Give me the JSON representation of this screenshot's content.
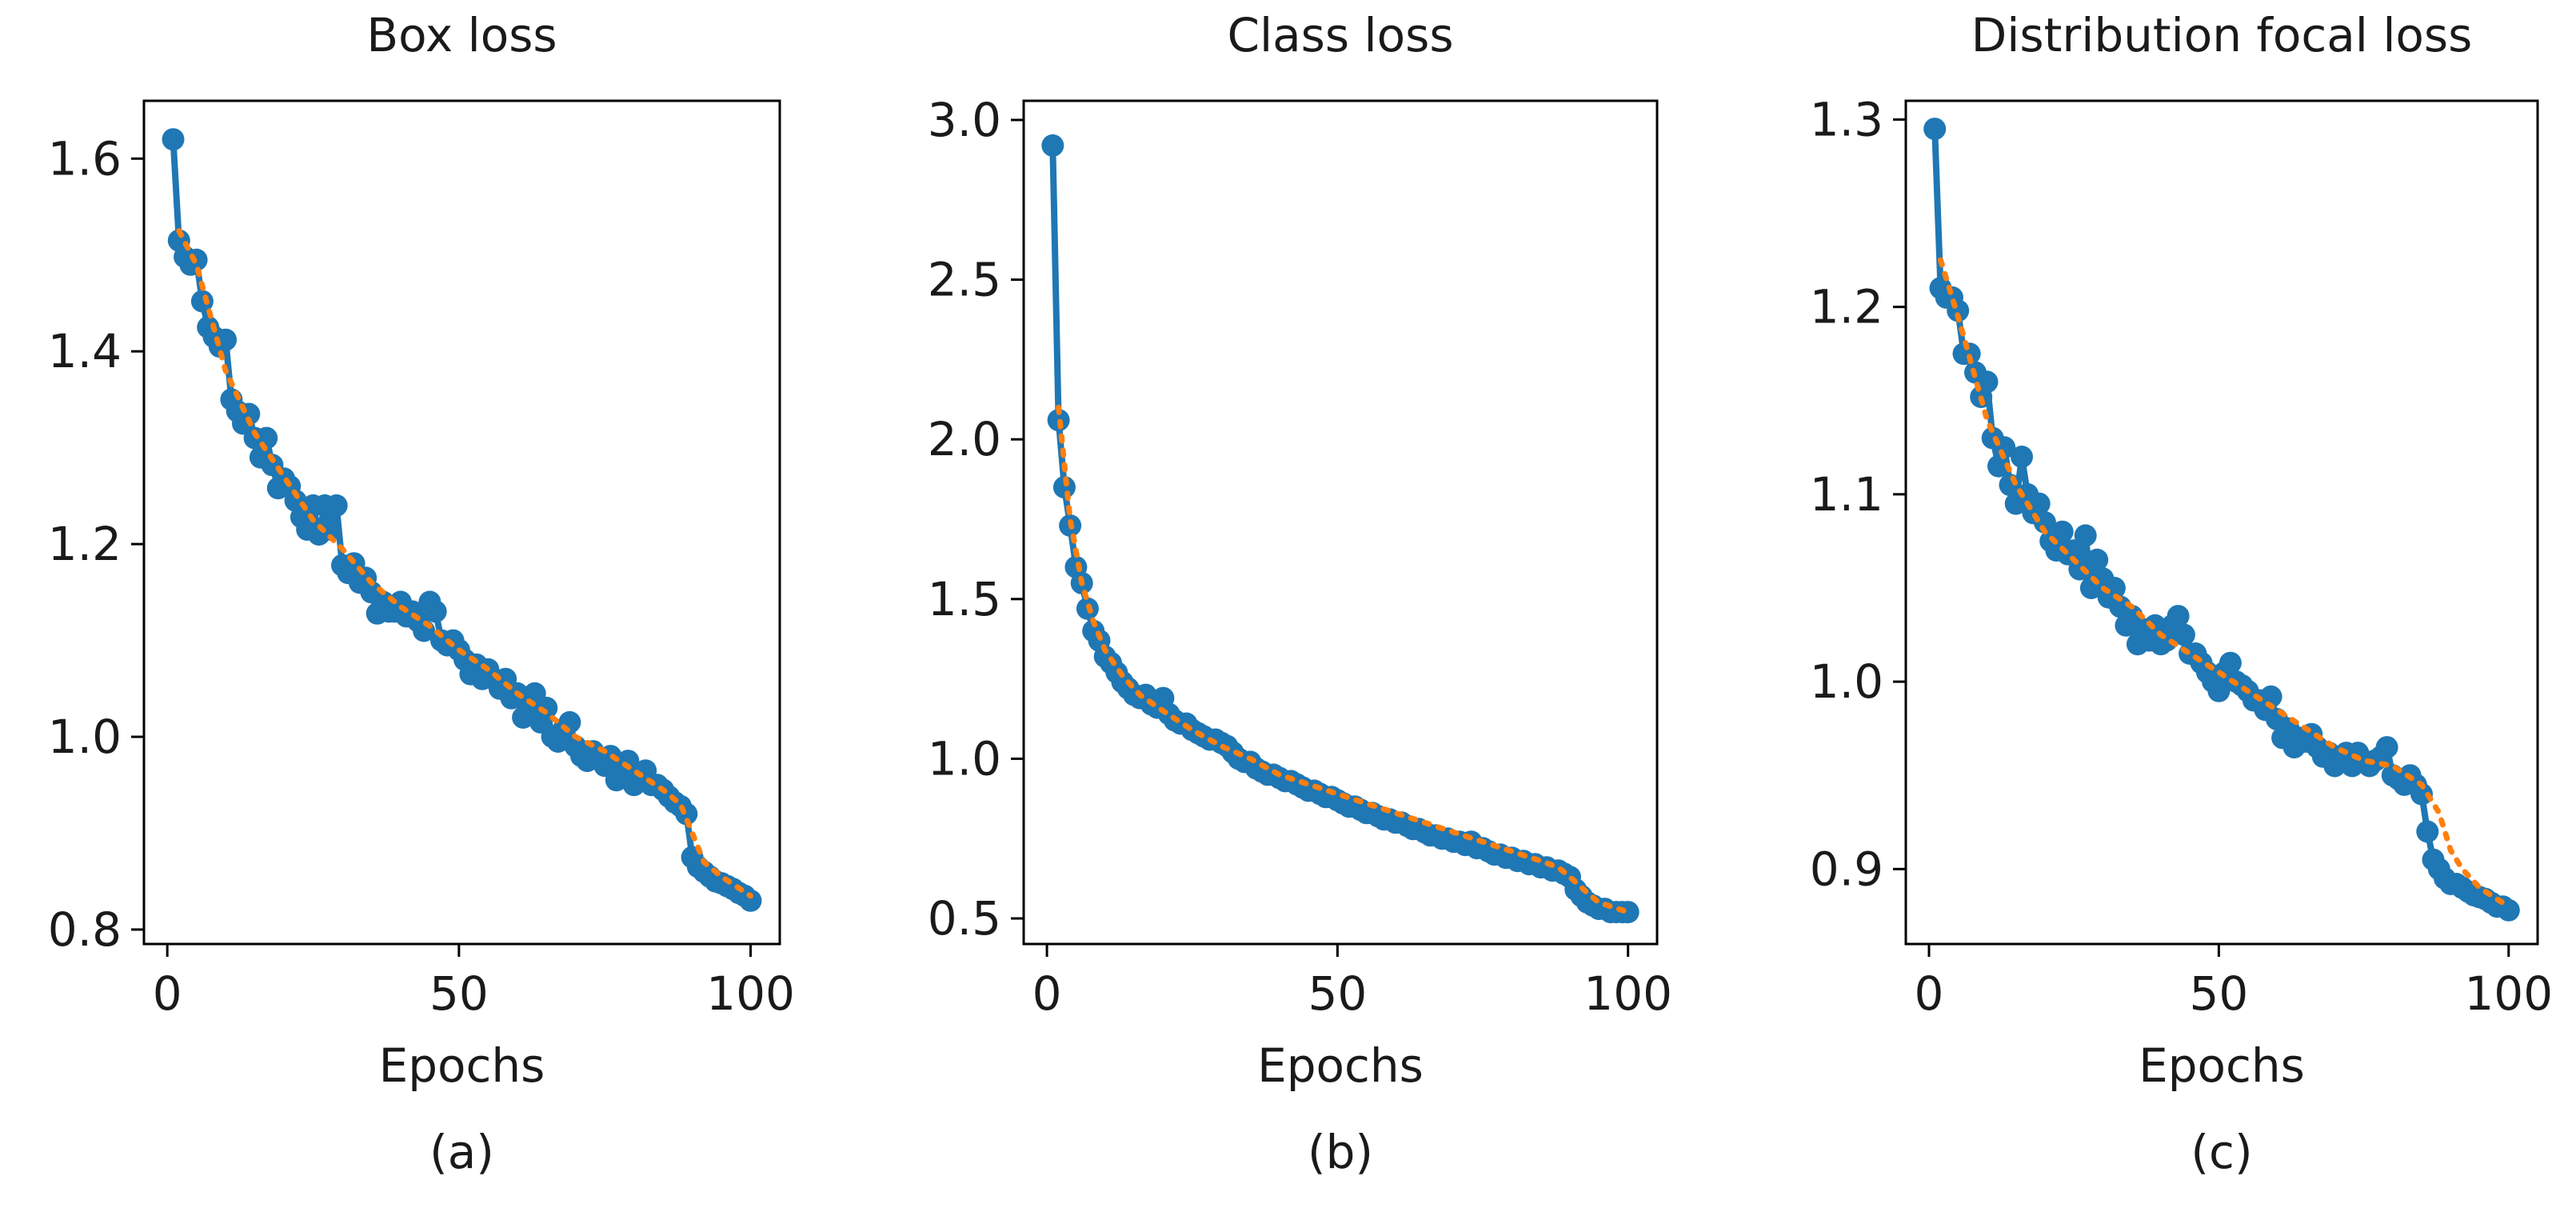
{
  "chart_data": [
    {
      "panel_label": "(a)",
      "type": "line",
      "title": "Box loss",
      "xlabel": "Epochs",
      "ylabel": "",
      "xlim": [
        -4,
        105
      ],
      "ylim": [
        0.785,
        1.66
      ],
      "xticks": [
        0,
        50,
        100
      ],
      "xtick_labels": [
        "0",
        "50",
        "100"
      ],
      "yticks": [
        0.8,
        1.0,
        1.2,
        1.4,
        1.6
      ],
      "ytick_labels": [
        "0.8",
        "1.0",
        "1.2",
        "1.4",
        "1.6"
      ],
      "grid": false,
      "legend": "none",
      "series": [
        {
          "style": "line-markers",
          "color": "#1f77b4",
          "x": [
            1,
            2,
            3,
            4,
            5,
            6,
            7,
            8,
            9,
            10,
            11,
            12,
            13,
            14,
            15,
            16,
            17,
            18,
            19,
            20,
            21,
            22,
            23,
            24,
            25,
            26,
            27,
            28,
            29,
            30,
            31,
            32,
            33,
            34,
            35,
            36,
            37,
            38,
            39,
            40,
            41,
            42,
            43,
            44,
            45,
            46,
            47,
            48,
            49,
            50,
            51,
            52,
            53,
            54,
            55,
            56,
            57,
            58,
            59,
            60,
            61,
            62,
            63,
            64,
            65,
            66,
            67,
            68,
            69,
            70,
            71,
            72,
            73,
            74,
            75,
            76,
            77,
            78,
            79,
            80,
            81,
            82,
            83,
            84,
            85,
            86,
            87,
            88,
            89,
            90,
            91,
            92,
            93,
            94,
            95,
            96,
            97,
            98,
            99,
            100
          ],
          "y": [
            1.62,
            1.515,
            1.498,
            1.49,
            1.495,
            1.452,
            1.425,
            1.415,
            1.405,
            1.412,
            1.35,
            1.338,
            1.325,
            1.335,
            1.31,
            1.29,
            1.31,
            1.282,
            1.258,
            1.268,
            1.26,
            1.245,
            1.228,
            1.215,
            1.24,
            1.21,
            1.24,
            1.215,
            1.24,
            1.178,
            1.17,
            1.18,
            1.16,
            1.165,
            1.15,
            1.128,
            1.14,
            1.13,
            1.13,
            1.14,
            1.125,
            1.13,
            1.12,
            1.11,
            1.14,
            1.13,
            1.1,
            1.095,
            1.1,
            1.09,
            1.08,
            1.065,
            1.075,
            1.06,
            1.07,
            1.06,
            1.05,
            1.06,
            1.04,
            1.045,
            1.02,
            1.03,
            1.045,
            1.015,
            1.03,
            1.0,
            0.995,
            1.008,
            1.015,
            0.99,
            0.98,
            0.975,
            0.985,
            0.978,
            0.97,
            0.98,
            0.955,
            0.965,
            0.975,
            0.95,
            0.96,
            0.965,
            0.95,
            0.95,
            0.945,
            0.938,
            0.932,
            0.928,
            0.92,
            0.875,
            0.865,
            0.86,
            0.855,
            0.85,
            0.848,
            0.845,
            0.842,
            0.838,
            0.835,
            0.83
          ]
        },
        {
          "style": "dotted-trend",
          "color": "#ff7f0e",
          "x": [
            2,
            5,
            10,
            15,
            20,
            25,
            30,
            35,
            40,
            45,
            50,
            55,
            60,
            65,
            70,
            75,
            80,
            85,
            88,
            90,
            92,
            95,
            100
          ],
          "y": [
            1.525,
            1.49,
            1.38,
            1.315,
            1.27,
            1.225,
            1.195,
            1.16,
            1.135,
            1.115,
            1.09,
            1.07,
            1.045,
            1.025,
            1.0,
            0.985,
            0.965,
            0.945,
            0.93,
            0.9,
            0.87,
            0.855,
            0.835
          ]
        }
      ]
    },
    {
      "panel_label": "(b)",
      "type": "line",
      "title": "Class loss",
      "xlabel": "Epochs",
      "ylabel": "",
      "xlim": [
        -4,
        105
      ],
      "ylim": [
        0.42,
        3.06
      ],
      "xticks": [
        0,
        50,
        100
      ],
      "xtick_labels": [
        "0",
        "50",
        "100"
      ],
      "yticks": [
        0.5,
        1.0,
        1.5,
        2.0,
        2.5,
        3.0
      ],
      "ytick_labels": [
        "0.5",
        "1.0",
        "1.5",
        "2.0",
        "2.5",
        "3.0"
      ],
      "grid": false,
      "legend": "none",
      "series": [
        {
          "style": "line-markers",
          "color": "#1f77b4",
          "x": [
            1,
            2,
            3,
            4,
            5,
            6,
            7,
            8,
            9,
            10,
            11,
            12,
            13,
            14,
            15,
            16,
            17,
            18,
            19,
            20,
            21,
            22,
            23,
            24,
            25,
            26,
            27,
            28,
            29,
            30,
            31,
            32,
            33,
            34,
            35,
            36,
            37,
            38,
            39,
            40,
            41,
            42,
            43,
            44,
            45,
            46,
            47,
            48,
            49,
            50,
            51,
            52,
            53,
            54,
            55,
            56,
            57,
            58,
            59,
            60,
            61,
            62,
            63,
            64,
            65,
            66,
            67,
            68,
            69,
            70,
            71,
            72,
            73,
            74,
            75,
            76,
            77,
            78,
            79,
            80,
            81,
            82,
            83,
            84,
            85,
            86,
            87,
            88,
            89,
            90,
            91,
            92,
            93,
            94,
            95,
            96,
            97,
            98,
            99,
            100
          ],
          "y": [
            2.92,
            2.06,
            1.85,
            1.73,
            1.6,
            1.55,
            1.47,
            1.4,
            1.37,
            1.32,
            1.3,
            1.27,
            1.24,
            1.22,
            1.2,
            1.19,
            1.2,
            1.17,
            1.16,
            1.19,
            1.14,
            1.12,
            1.11,
            1.11,
            1.09,
            1.08,
            1.07,
            1.06,
            1.06,
            1.05,
            1.04,
            1.02,
            1.0,
            0.99,
            0.99,
            0.97,
            0.96,
            0.95,
            0.95,
            0.94,
            0.93,
            0.93,
            0.92,
            0.91,
            0.9,
            0.9,
            0.89,
            0.88,
            0.88,
            0.87,
            0.86,
            0.85,
            0.85,
            0.84,
            0.83,
            0.83,
            0.82,
            0.81,
            0.81,
            0.8,
            0.8,
            0.79,
            0.78,
            0.78,
            0.77,
            0.76,
            0.76,
            0.75,
            0.75,
            0.74,
            0.74,
            0.73,
            0.74,
            0.72,
            0.72,
            0.71,
            0.7,
            0.7,
            0.69,
            0.69,
            0.68,
            0.68,
            0.67,
            0.67,
            0.66,
            0.66,
            0.65,
            0.65,
            0.64,
            0.63,
            0.59,
            0.57,
            0.55,
            0.54,
            0.53,
            0.53,
            0.52,
            0.52,
            0.52,
            0.52
          ]
        },
        {
          "style": "dotted-trend",
          "color": "#ff7f0e",
          "x": [
            2,
            3,
            4,
            6,
            8,
            10,
            13,
            16,
            20,
            25,
            30,
            35,
            40,
            45,
            50,
            55,
            60,
            65,
            70,
            75,
            80,
            85,
            88,
            90,
            93,
            95,
            100
          ],
          "y": [
            2.1,
            1.92,
            1.75,
            1.55,
            1.43,
            1.34,
            1.26,
            1.2,
            1.15,
            1.09,
            1.04,
            1.0,
            0.95,
            0.92,
            0.89,
            0.86,
            0.83,
            0.8,
            0.77,
            0.74,
            0.71,
            0.68,
            0.66,
            0.63,
            0.58,
            0.55,
            0.52
          ]
        }
      ]
    },
    {
      "panel_label": "(c)",
      "type": "line",
      "title": "Distribution focal loss",
      "xlabel": "Epochs",
      "ylabel": "",
      "xlim": [
        -4,
        105
      ],
      "ylim": [
        0.86,
        1.31
      ],
      "xticks": [
        0,
        50,
        100
      ],
      "xtick_labels": [
        "0",
        "50",
        "100"
      ],
      "yticks": [
        0.9,
        1.0,
        1.1,
        1.2,
        1.3
      ],
      "ytick_labels": [
        "0.9",
        "1.0",
        "1.1",
        "1.2",
        "1.3"
      ],
      "grid": false,
      "legend": "none",
      "series": [
        {
          "style": "line-markers",
          "color": "#1f77b4",
          "x": [
            1,
            2,
            3,
            4,
            5,
            6,
            7,
            8,
            9,
            10,
            11,
            12,
            13,
            14,
            15,
            16,
            17,
            18,
            19,
            20,
            21,
            22,
            23,
            24,
            25,
            26,
            27,
            28,
            29,
            30,
            31,
            32,
            33,
            34,
            35,
            36,
            37,
            38,
            39,
            40,
            41,
            42,
            43,
            44,
            45,
            46,
            47,
            48,
            49,
            50,
            51,
            52,
            53,
            54,
            55,
            56,
            57,
            58,
            59,
            60,
            61,
            62,
            63,
            64,
            65,
            66,
            67,
            68,
            69,
            70,
            71,
            72,
            73,
            74,
            75,
            76,
            77,
            78,
            79,
            80,
            81,
            82,
            83,
            84,
            85,
            86,
            87,
            88,
            89,
            90,
            91,
            92,
            93,
            94,
            95,
            96,
            97,
            98,
            99,
            100
          ],
          "y": [
            1.295,
            1.21,
            1.205,
            1.205,
            1.198,
            1.175,
            1.175,
            1.165,
            1.152,
            1.16,
            1.13,
            1.115,
            1.125,
            1.105,
            1.095,
            1.12,
            1.1,
            1.09,
            1.095,
            1.085,
            1.075,
            1.07,
            1.08,
            1.068,
            1.07,
            1.06,
            1.078,
            1.05,
            1.065,
            1.055,
            1.045,
            1.05,
            1.04,
            1.03,
            1.035,
            1.02,
            1.028,
            1.022,
            1.03,
            1.02,
            1.022,
            1.03,
            1.035,
            1.025,
            1.015,
            1.015,
            1.01,
            1.005,
            1.0,
            0.995,
            1.005,
            1.01,
            1.0,
            0.998,
            0.995,
            0.99,
            0.99,
            0.985,
            0.992,
            0.98,
            0.97,
            0.975,
            0.965,
            0.97,
            0.968,
            0.972,
            0.965,
            0.96,
            0.962,
            0.955,
            0.96,
            0.962,
            0.955,
            0.962,
            0.958,
            0.955,
            0.958,
            0.96,
            0.965,
            0.95,
            0.948,
            0.945,
            0.95,
            0.945,
            0.94,
            0.92,
            0.905,
            0.9,
            0.895,
            0.892,
            0.892,
            0.89,
            0.888,
            0.886,
            0.885,
            0.884,
            0.882,
            0.88,
            0.88,
            0.878
          ]
        },
        {
          "style": "dotted-trend",
          "color": "#ff7f0e",
          "x": [
            2,
            5,
            10,
            15,
            20,
            25,
            30,
            35,
            40,
            45,
            50,
            55,
            60,
            65,
            70,
            75,
            80,
            85,
            88,
            90,
            92,
            95,
            100
          ],
          "y": [
            1.225,
            1.195,
            1.14,
            1.105,
            1.08,
            1.065,
            1.05,
            1.04,
            1.025,
            1.015,
            1.005,
            0.995,
            0.985,
            0.975,
            0.965,
            0.958,
            0.955,
            0.945,
            0.93,
            0.91,
            0.9,
            0.89,
            0.88
          ]
        }
      ]
    }
  ]
}
